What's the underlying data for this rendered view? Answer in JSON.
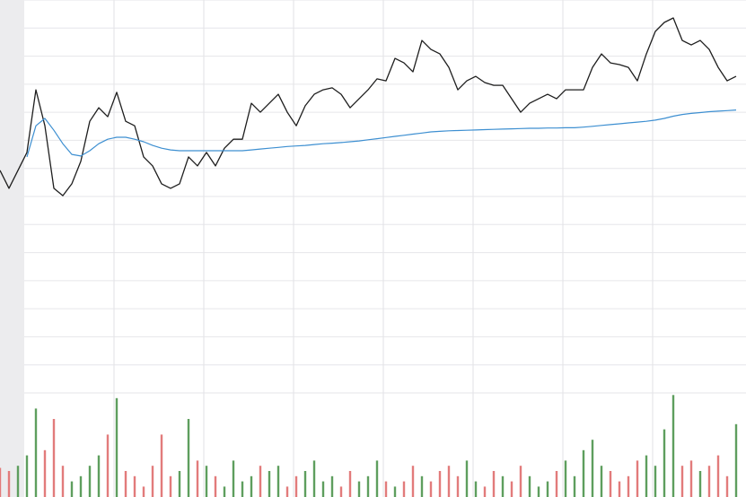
{
  "chart_data": {
    "type": "line",
    "xlim": [
      0,
      83.1
    ],
    "xticks": [
      12.7,
      22.7,
      32.7,
      42.7,
      52.7,
      62.7,
      72.7
    ],
    "ylim": [
      0,
      14
    ],
    "yticks": [
      0,
      1,
      2,
      3,
      4,
      5,
      6,
      7,
      8,
      9,
      10,
      11,
      12,
      13,
      14
    ],
    "grid": true,
    "series": [
      {
        "color": "#1e1e1e",
        "values": [
          7.93,
          7.29,
          7.93,
          8.57,
          10.8,
          9.52,
          7.29,
          7.03,
          7.45,
          8.25,
          9.68,
          10.16,
          9.84,
          10.71,
          9.68,
          9.52,
          8.41,
          8.09,
          7.45,
          7.29,
          7.45,
          8.41,
          8.09,
          8.57,
          8.09,
          8.72,
          9.04,
          9.04,
          10.32,
          10.0,
          10.32,
          10.64,
          10.0,
          9.52,
          10.23,
          10.64,
          10.8,
          10.87,
          10.64,
          10.16,
          10.48,
          10.8,
          11.19,
          11.12,
          11.92,
          11.76,
          11.44,
          12.56,
          12.24,
          12.08,
          11.6,
          10.8,
          11.12,
          11.28,
          11.06,
          10.96,
          10.96,
          10.48,
          10.0,
          10.32,
          10.48,
          10.64,
          10.48,
          10.8,
          10.8,
          10.8,
          11.6,
          12.08,
          11.76,
          11.7,
          11.6,
          11.12,
          12.08,
          12.88,
          13.2,
          13.36,
          12.56,
          12.4,
          12.56,
          12.24,
          11.6,
          11.12,
          11.28
        ]
      },
      {
        "color": "#3d8fd1",
        "values": [
          null,
          null,
          null,
          8.41,
          9.52,
          9.78,
          9.36,
          8.88,
          8.5,
          8.44,
          8.63,
          8.88,
          9.04,
          9.11,
          9.11,
          9.04,
          8.95,
          8.82,
          8.72,
          8.66,
          8.63,
          8.63,
          8.63,
          8.63,
          8.63,
          8.63,
          8.63,
          8.63,
          8.66,
          8.69,
          8.72,
          8.75,
          8.78,
          8.8,
          8.82,
          8.85,
          8.88,
          8.9,
          8.92,
          8.95,
          8.98,
          9.02,
          9.06,
          9.1,
          9.14,
          9.18,
          9.22,
          9.26,
          9.3,
          9.32,
          9.34,
          9.35,
          9.36,
          9.37,
          9.38,
          9.39,
          9.4,
          9.41,
          9.42,
          9.43,
          9.43,
          9.44,
          9.44,
          9.45,
          9.45,
          9.47,
          9.5,
          9.53,
          9.56,
          9.59,
          9.62,
          9.65,
          9.68,
          9.72,
          9.78,
          9.86,
          9.92,
          9.96,
          9.99,
          10.02,
          10.04,
          10.06,
          10.08
        ]
      }
    ],
    "volume": {
      "ylim": [
        0,
        100
      ],
      "up_color": "#5e9e5e",
      "down_color": "#e27b7b",
      "values": [
        28,
        25,
        30,
        40,
        85,
        45,
        75,
        30,
        15,
        20,
        30,
        40,
        60,
        95,
        25,
        20,
        10,
        30,
        60,
        20,
        25,
        75,
        35,
        30,
        20,
        10,
        35,
        15,
        20,
        30,
        25,
        30,
        10,
        20,
        25,
        35,
        15,
        20,
        10,
        25,
        15,
        20,
        35,
        15,
        10,
        15,
        30,
        20,
        15,
        25,
        30,
        20,
        35,
        15,
        10,
        25,
        20,
        15,
        30,
        20,
        10,
        15,
        25,
        35,
        20,
        45,
        55,
        30,
        25,
        15,
        20,
        35,
        40,
        30,
        65,
        98,
        30,
        35,
        25,
        30,
        40,
        20,
        70
      ]
    }
  }
}
